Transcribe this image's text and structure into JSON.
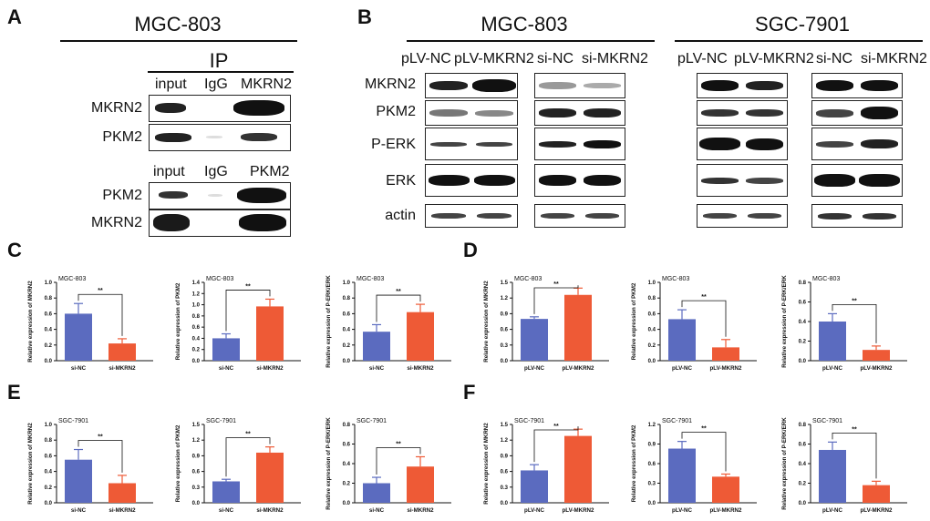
{
  "panel_a": {
    "letter": "A",
    "title": "MGC-803",
    "ip_label": "IP",
    "top": {
      "lanes": [
        "input",
        "IgG",
        "MKRN2"
      ],
      "rows": [
        "MKRN2",
        "PKM2"
      ]
    },
    "bottom": {
      "lanes": [
        "input",
        "IgG",
        "PKM2"
      ],
      "rows": [
        "PKM2",
        "MKRN2"
      ]
    }
  },
  "panel_b": {
    "letter": "B",
    "titles": [
      "MGC-803",
      "SGC-7901"
    ],
    "lanes": [
      "pLV-NC",
      "pLV-MKRN2",
      "si-NC",
      "si-MKRN2",
      "pLV-NC",
      "pLV-MKRN2",
      "si-NC",
      "si-MKRN2"
    ],
    "rows": [
      "MKRN2",
      "PKM2",
      "P-ERK",
      "ERK",
      "actin"
    ]
  },
  "chart_data": [
    {
      "panel": "C",
      "type": "bar",
      "title": "MGC-803",
      "ylabel": "Relative expression of MKRN2",
      "categories": [
        "si-NC",
        "si-MKRN2"
      ],
      "values": [
        0.6,
        0.22
      ],
      "errors": [
        0.13,
        0.06
      ],
      "ylim": [
        0,
        1.0
      ],
      "ticks": [
        "0.0",
        "0.2",
        "0.4",
        "0.6",
        "0.8",
        "1.0"
      ],
      "significance": "**"
    },
    {
      "panel": "C",
      "type": "bar",
      "title": "MGC-803",
      "ylabel": "Relative expression of PKM2",
      "categories": [
        "si-NC",
        "si-MKRN2"
      ],
      "values": [
        0.4,
        0.97
      ],
      "errors": [
        0.08,
        0.13
      ],
      "ylim": [
        0,
        1.4
      ],
      "ticks": [
        "0.0",
        "0.2",
        "0.4",
        "0.6",
        "0.8",
        "1.0",
        "1.2",
        "1.4"
      ],
      "significance": "**"
    },
    {
      "panel": "C",
      "type": "bar",
      "title": "MGC-803",
      "ylabel": "Relative expression of P-ERK/ERK",
      "categories": [
        "si-NC",
        "si-MKRN2"
      ],
      "values": [
        0.37,
        0.62
      ],
      "errors": [
        0.09,
        0.1
      ],
      "ylim": [
        0,
        1.0
      ],
      "ticks": [
        "0.0",
        "0.2",
        "0.4",
        "0.6",
        "0.8",
        "1.0"
      ],
      "significance": "**"
    },
    {
      "panel": "D",
      "type": "bar",
      "title": "MGC-803",
      "ylabel": "Relative expression of MKRN2",
      "categories": [
        "pLV-NC",
        "pLV-MKRN2"
      ],
      "values": [
        0.8,
        1.26
      ],
      "errors": [
        0.04,
        0.13
      ],
      "ylim": [
        0,
        1.5
      ],
      "ticks": [
        "0.0",
        "0.3",
        "0.6",
        "0.9",
        "1.2",
        "1.5"
      ],
      "significance": "**"
    },
    {
      "panel": "D",
      "type": "bar",
      "title": "MGC-803",
      "ylabel": "Relative expression of PKM2",
      "categories": [
        "pLV-NC",
        "pLV-MKRN2"
      ],
      "values": [
        0.53,
        0.17
      ],
      "errors": [
        0.12,
        0.1
      ],
      "ylim": [
        0,
        1.0
      ],
      "ticks": [
        "0.0",
        "0.2",
        "0.4",
        "0.6",
        "0.8",
        "1.0"
      ],
      "significance": "**"
    },
    {
      "panel": "D",
      "type": "bar",
      "title": "MGC-803",
      "ylabel": "Relative expression of P-ERK/ERK",
      "categories": [
        "pLV-NC",
        "pLV-MKRN2"
      ],
      "values": [
        0.4,
        0.11
      ],
      "errors": [
        0.08,
        0.04
      ],
      "ylim": [
        0,
        0.8
      ],
      "ticks": [
        "0.0",
        "0.2",
        "0.4",
        "0.6",
        "0.8"
      ],
      "significance": "**"
    },
    {
      "panel": "E",
      "type": "bar",
      "title": "SGC-7901",
      "ylabel": "Relative expression of MKRN2",
      "categories": [
        "si-NC",
        "si-MKRN2"
      ],
      "values": [
        0.55,
        0.25
      ],
      "errors": [
        0.13,
        0.1
      ],
      "ylim": [
        0,
        1.0
      ],
      "ticks": [
        "0.0",
        "0.2",
        "0.4",
        "0.6",
        "0.8",
        "1.0"
      ],
      "significance": "**"
    },
    {
      "panel": "E",
      "type": "bar",
      "title": "SGC-7901",
      "ylabel": "Relative expression of PKM2",
      "categories": [
        "si-NC",
        "si-MKRN2"
      ],
      "values": [
        0.41,
        0.96
      ],
      "errors": [
        0.04,
        0.11
      ],
      "ylim": [
        0,
        1.5
      ],
      "ticks": [
        "0.0",
        "0.3",
        "0.6",
        "0.9",
        "1.2",
        "1.5"
      ],
      "significance": "**"
    },
    {
      "panel": "E",
      "type": "bar",
      "title": "SGC-7901",
      "ylabel": "Relative expression of P-ERK/ERK",
      "categories": [
        "si-NC",
        "si-MKRN2"
      ],
      "values": [
        0.2,
        0.37
      ],
      "errors": [
        0.06,
        0.1
      ],
      "ylim": [
        0,
        0.8
      ],
      "ticks": [
        "0.0",
        "0.2",
        "0.4",
        "0.6",
        "0.8"
      ],
      "significance": "**"
    },
    {
      "panel": "F",
      "type": "bar",
      "title": "SGC-7901",
      "ylabel": "Relative expression of MKRN2",
      "categories": [
        "pLV-NC",
        "pLV-MKRN2"
      ],
      "values": [
        0.62,
        1.28
      ],
      "errors": [
        0.11,
        0.13
      ],
      "ylim": [
        0,
        1.5
      ],
      "ticks": [
        "0.0",
        "0.3",
        "0.6",
        "0.9",
        "1.2",
        "1.5"
      ],
      "significance": "**"
    },
    {
      "panel": "F",
      "type": "bar",
      "title": "SGC-7901",
      "ylabel": "Relative expression of PKM2",
      "categories": [
        "pLV-NC",
        "pLV-MKRN2"
      ],
      "values": [
        0.83,
        0.4
      ],
      "errors": [
        0.11,
        0.04
      ],
      "ylim": [
        0,
        1.2
      ],
      "ticks": [
        "0.0",
        "0.3",
        "0.6",
        "0.9",
        "1.2"
      ],
      "significance": "**"
    },
    {
      "panel": "F",
      "type": "bar",
      "title": "SGC-7901",
      "ylabel": "Relative expression of P-ERK/ERK",
      "categories": [
        "pLV-NC",
        "pLV-MKRN2"
      ],
      "values": [
        0.54,
        0.18
      ],
      "errors": [
        0.08,
        0.04
      ],
      "ylim": [
        0,
        0.8
      ],
      "ticks": [
        "0.0",
        "0.2",
        "0.4",
        "0.6",
        "0.8"
      ],
      "significance": "**"
    }
  ],
  "panel_letters": {
    "C": "C",
    "D": "D",
    "E": "E",
    "F": "F"
  },
  "colors": {
    "control": "#5b6bbf",
    "treatment": "#ee5a36"
  }
}
